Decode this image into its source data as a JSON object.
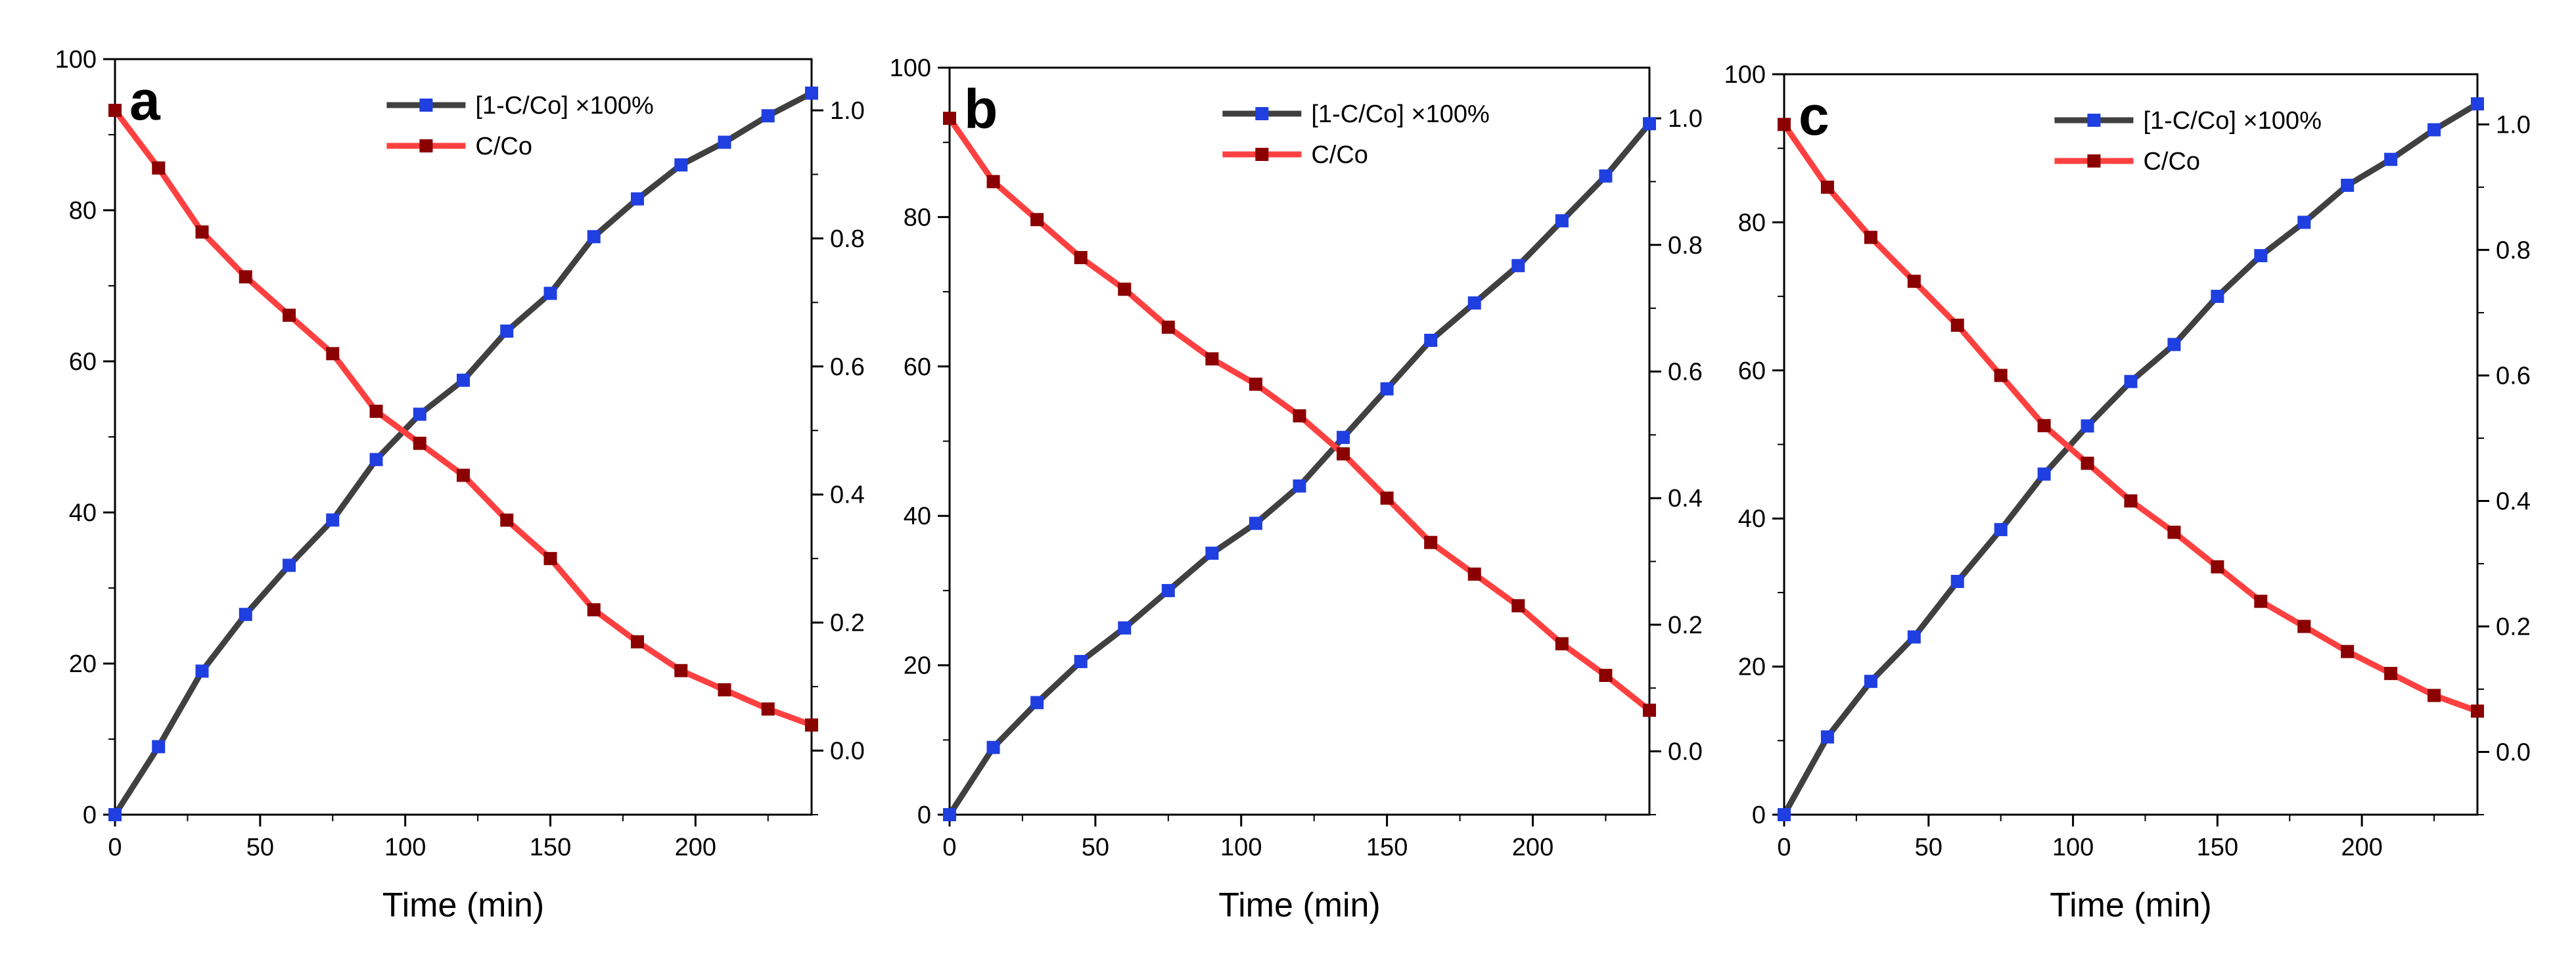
{
  "chart_data": [
    {
      "type": "line",
      "panel_label": "a",
      "xlabel": "Time (min)",
      "xlim": [
        0,
        240
      ],
      "xticks": [
        0,
        50,
        100,
        150,
        200
      ],
      "ylim_left": [
        0,
        100
      ],
      "yticks_left": [
        0,
        20,
        40,
        60,
        80,
        100
      ],
      "ylim_right": [
        -0.1,
        1.08
      ],
      "yticks_right": [
        "0.0",
        "0.2",
        "0.4",
        "0.6",
        "0.8",
        "1.0"
      ],
      "legend_position": "top-center",
      "x": [
        0,
        15,
        30,
        45,
        60,
        75,
        90,
        105,
        120,
        135,
        150,
        165,
        180,
        195,
        210,
        225,
        240
      ],
      "series": [
        {
          "name": "[1-C/Co] ×100%",
          "axis": "left",
          "color": "#404040",
          "marker_color": "#1f3fe0",
          "values": [
            0,
            9,
            19,
            26.5,
            33,
            39,
            47,
            53,
            57.5,
            64,
            69,
            76.5,
            81.5,
            86,
            89,
            92.5,
            95.5
          ]
        },
        {
          "name": "C/Co",
          "axis": "right",
          "color": "#ff4040",
          "marker_color": "#8b0000",
          "values": [
            1.0,
            0.91,
            0.81,
            0.74,
            0.68,
            0.62,
            0.53,
            0.48,
            0.43,
            0.36,
            0.3,
            0.22,
            0.17,
            0.125,
            0.095,
            0.065,
            0.04
          ]
        }
      ]
    },
    {
      "type": "line",
      "panel_label": "b",
      "xlabel": "Time (min)",
      "xlim": [
        0,
        240
      ],
      "xticks": [
        0,
        50,
        100,
        150,
        200
      ],
      "ylim_left": [
        0,
        100
      ],
      "yticks_left": [
        0,
        20,
        40,
        60,
        80,
        100
      ],
      "ylim_right": [
        -0.1,
        1.08
      ],
      "yticks_right": [
        "0.0",
        "0.2",
        "0.4",
        "0.6",
        "0.8",
        "1.0"
      ],
      "legend_position": "top-center",
      "x": [
        0,
        15,
        30,
        45,
        60,
        75,
        90,
        105,
        120,
        135,
        150,
        165,
        180,
        195,
        210,
        225,
        240
      ],
      "series": [
        {
          "name": "[1-C/Co] ×100%",
          "axis": "left",
          "color": "#404040",
          "marker_color": "#1f3fe0",
          "values": [
            0,
            9,
            15,
            20.5,
            25,
            30,
            35,
            39,
            44,
            50.5,
            57,
            63.5,
            68.5,
            73.5,
            79.5,
            85.5,
            92.5
          ]
        },
        {
          "name": "C/Co",
          "axis": "right",
          "color": "#ff4040",
          "marker_color": "#8b0000",
          "values": [
            1.0,
            0.9,
            0.84,
            0.78,
            0.73,
            0.67,
            0.62,
            0.58,
            0.53,
            0.47,
            0.4,
            0.33,
            0.28,
            0.23,
            0.17,
            0.12,
            0.065
          ]
        }
      ]
    },
    {
      "type": "line",
      "panel_label": "c",
      "xlabel": "Time (min)",
      "xlim": [
        0,
        240
      ],
      "xticks": [
        0,
        50,
        100,
        150,
        200
      ],
      "ylim_left": [
        0,
        100
      ],
      "yticks_left": [
        0,
        20,
        40,
        60,
        80,
        100
      ],
      "ylim_right": [
        -0.1,
        1.08
      ],
      "yticks_right": [
        "0.0",
        "0.2",
        "0.4",
        "0.6",
        "0.8",
        "1.0"
      ],
      "legend_position": "top-center",
      "x": [
        0,
        15,
        30,
        45,
        60,
        75,
        90,
        105,
        120,
        135,
        150,
        165,
        180,
        195,
        210,
        225,
        240
      ],
      "series": [
        {
          "name": "[1-C/Co] ×100%",
          "axis": "left",
          "color": "#404040",
          "marker_color": "#1f3fe0",
          "values": [
            0,
            10.5,
            18,
            24,
            31.5,
            38.5,
            46,
            52.5,
            58.5,
            63.5,
            70,
            75.5,
            80,
            85,
            88.5,
            92.5,
            96
          ]
        },
        {
          "name": "C/Co",
          "axis": "right",
          "color": "#ff4040",
          "marker_color": "#8b0000",
          "values": [
            1.0,
            0.9,
            0.82,
            0.75,
            0.68,
            0.6,
            0.52,
            0.46,
            0.4,
            0.35,
            0.295,
            0.24,
            0.2,
            0.16,
            0.125,
            0.09,
            0.065
          ]
        }
      ]
    }
  ]
}
